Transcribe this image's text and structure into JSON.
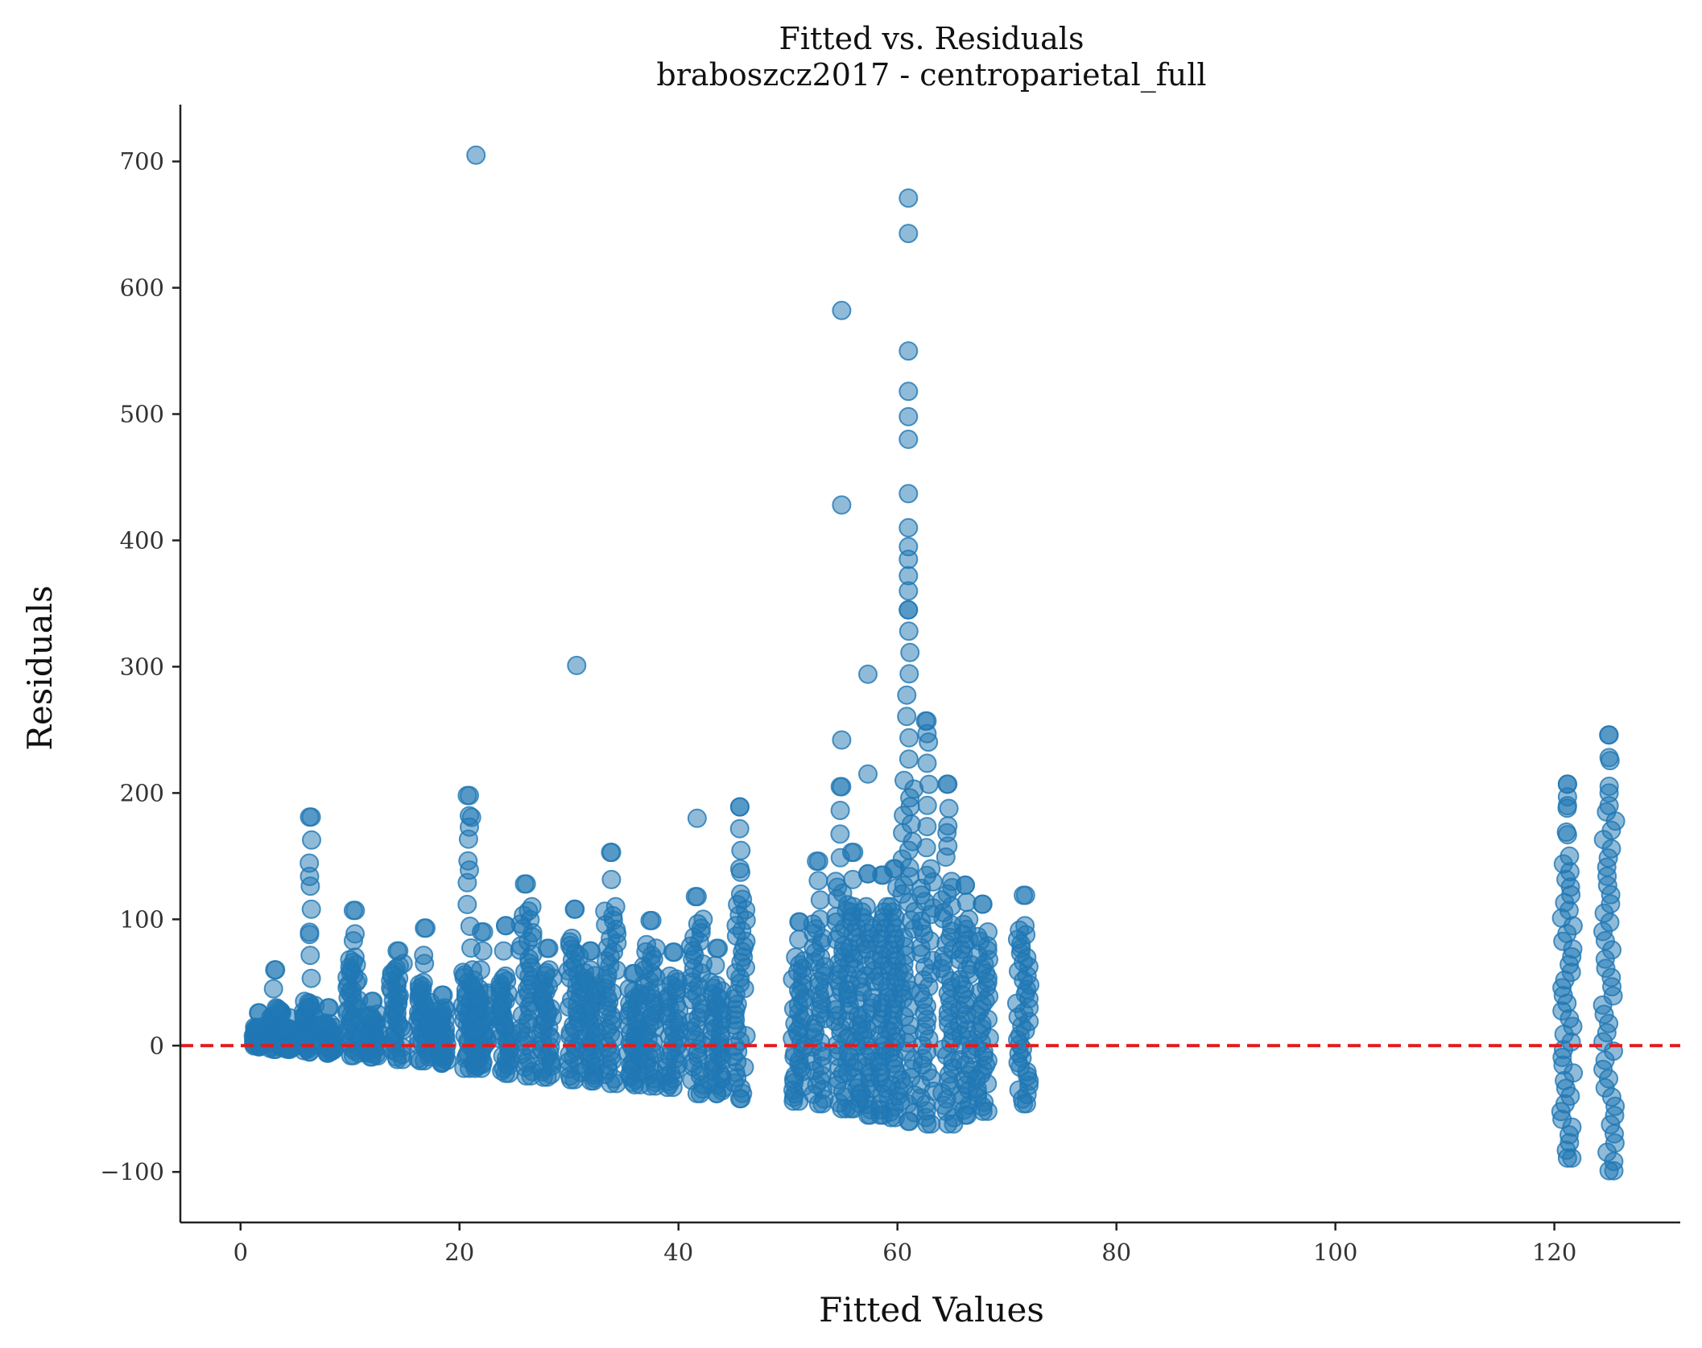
{
  "chart_data": {
    "type": "scatter",
    "title": "Fitted vs. Residuals",
    "subtitle": "braboszcz2017 - centroparietal_full",
    "xlabel": "Fitted Values",
    "ylabel": "Residuals",
    "xlim": [
      -5.5,
      131.5
    ],
    "ylim": [
      -140,
      745
    ],
    "xticks": [
      0,
      20,
      40,
      60,
      80,
      100,
      120
    ],
    "yticks": [
      -100,
      0,
      100,
      200,
      300,
      400,
      500,
      600,
      700
    ],
    "xtick_labels": [
      "0",
      "20",
      "40",
      "60",
      "80",
      "100",
      "120"
    ],
    "ytick_labels": [
      "−100",
      "0",
      "100",
      "200",
      "300",
      "400",
      "500",
      "600",
      "700"
    ],
    "grid": false,
    "marker_color": "#1f77b4",
    "marker_alpha": 0.5,
    "reference_line": {
      "y": 0,
      "color": "#e41a1c",
      "style": "dashed"
    },
    "clusters": [
      {
        "x": 1.7,
        "low": -1,
        "high": 26,
        "dense_high": 15
      },
      {
        "x": 3.2,
        "low": -3,
        "high": 60,
        "dense_high": 30
      },
      {
        "x": 4.5,
        "low": -3,
        "high": 22,
        "dense_high": 14
      },
      {
        "x": 6.3,
        "low": -5,
        "high": 181,
        "dense_high": 35
      },
      {
        "x": 8.0,
        "low": -6,
        "high": 30,
        "dense_high": 18
      },
      {
        "x": 10.3,
        "low": -8,
        "high": 107,
        "dense_high": 70
      },
      {
        "x": 12.0,
        "low": -9,
        "high": 35,
        "dense_high": 25
      },
      {
        "x": 14.3,
        "low": -11,
        "high": 75,
        "dense_high": 65
      },
      {
        "x": 16.8,
        "low": -12,
        "high": 93,
        "dense_high": 50
      },
      {
        "x": 18.4,
        "low": -14,
        "high": 40,
        "dense_high": 30
      },
      {
        "x": 20.9,
        "low": -18,
        "high": 198,
        "dense_high": 60
      },
      {
        "x": 22.0,
        "low": -18,
        "high": 90,
        "dense_high": 45
      },
      {
        "x": 24.2,
        "low": -22,
        "high": 95,
        "dense_high": 55
      },
      {
        "x": 26.1,
        "low": -24,
        "high": 128,
        "dense_high": 110
      },
      {
        "x": 28.0,
        "low": -25,
        "high": 77,
        "dense_high": 60
      },
      {
        "x": 30.5,
        "low": -27,
        "high": 108,
        "dense_high": 85
      },
      {
        "x": 32.0,
        "low": -28,
        "high": 75,
        "dense_high": 60
      },
      {
        "x": 33.8,
        "low": -30,
        "high": 153,
        "dense_high": 110
      },
      {
        "x": 36.0,
        "low": -31,
        "high": 57,
        "dense_high": 45
      },
      {
        "x": 37.4,
        "low": -32,
        "high": 99,
        "dense_high": 80
      },
      {
        "x": 39.5,
        "low": -33,
        "high": 74,
        "dense_high": 55
      },
      {
        "x": 41.7,
        "low": -38,
        "high": 118,
        "dense_high": 100
      },
      {
        "x": 43.5,
        "low": -38,
        "high": 77,
        "dense_high": 50
      },
      {
        "x": 45.6,
        "low": -42,
        "high": 189,
        "dense_high": 120
      },
      {
        "x": 51.0,
        "low": -44,
        "high": 98,
        "dense_high": 70
      },
      {
        "x": 52.8,
        "low": -46,
        "high": 146,
        "dense_high": 100
      },
      {
        "x": 54.9,
        "low": -50,
        "high": 205,
        "dense_high": 130
      },
      {
        "x": 56.0,
        "low": -50,
        "high": 153,
        "dense_high": 110
      },
      {
        "x": 57.3,
        "low": -55,
        "high": 136,
        "dense_high": 110
      },
      {
        "x": 58.7,
        "low": -55,
        "high": 135,
        "dense_high": 110
      },
      {
        "x": 59.8,
        "low": -57,
        "high": 140,
        "dense_high": 110
      },
      {
        "x": 61.0,
        "low": -60,
        "high": 345,
        "dense_high": 210
      },
      {
        "x": 62.7,
        "low": -62,
        "high": 257,
        "dense_high": 140
      },
      {
        "x": 64.6,
        "low": -62,
        "high": 207,
        "dense_high": 130
      },
      {
        "x": 66.2,
        "low": -55,
        "high": 127,
        "dense_high": 100
      },
      {
        "x": 67.8,
        "low": -52,
        "high": 112,
        "dense_high": 90
      },
      {
        "x": 71.5,
        "low": -46,
        "high": 119,
        "dense_high": 95
      },
      {
        "x": 121.2,
        "low": -89,
        "high": 207,
        "dense_high": 150
      },
      {
        "x": 125.0,
        "low": -99,
        "high": 246,
        "dense_high": 185
      }
    ],
    "outliers": [
      {
        "x": 21.5,
        "y": 705
      },
      {
        "x": 61.0,
        "y": 671
      },
      {
        "x": 61.0,
        "y": 643
      },
      {
        "x": 54.9,
        "y": 582
      },
      {
        "x": 61.0,
        "y": 550
      },
      {
        "x": 61.0,
        "y": 518
      },
      {
        "x": 61.0,
        "y": 498
      },
      {
        "x": 61.0,
        "y": 480
      },
      {
        "x": 61.0,
        "y": 437
      },
      {
        "x": 54.9,
        "y": 428
      },
      {
        "x": 61.0,
        "y": 410
      },
      {
        "x": 61.0,
        "y": 395
      },
      {
        "x": 61.0,
        "y": 385
      },
      {
        "x": 61.0,
        "y": 372
      },
      {
        "x": 61.0,
        "y": 360
      },
      {
        "x": 30.7,
        "y": 301
      },
      {
        "x": 57.3,
        "y": 294
      },
      {
        "x": 54.9,
        "y": 242
      },
      {
        "x": 62.7,
        "y": 247
      },
      {
        "x": 57.3,
        "y": 215
      },
      {
        "x": 6.3,
        "y": 134
      },
      {
        "x": 6.3,
        "y": 88
      },
      {
        "x": 20.9,
        "y": 182
      },
      {
        "x": 20.9,
        "y": 173
      },
      {
        "x": 20.9,
        "y": 139
      },
      {
        "x": 41.7,
        "y": 180
      },
      {
        "x": 45.6,
        "y": 140
      },
      {
        "x": 64.6,
        "y": 174
      },
      {
        "x": 64.6,
        "y": 158
      },
      {
        "x": 121.2,
        "y": 197
      },
      {
        "x": 121.2,
        "y": 190
      },
      {
        "x": 121.2,
        "y": 167
      },
      {
        "x": 125.0,
        "y": 228
      },
      {
        "x": 125.0,
        "y": 200
      },
      {
        "x": 125.0,
        "y": 190
      },
      {
        "x": 16.8,
        "y": 65
      },
      {
        "x": 10.3,
        "y": 83
      }
    ]
  }
}
